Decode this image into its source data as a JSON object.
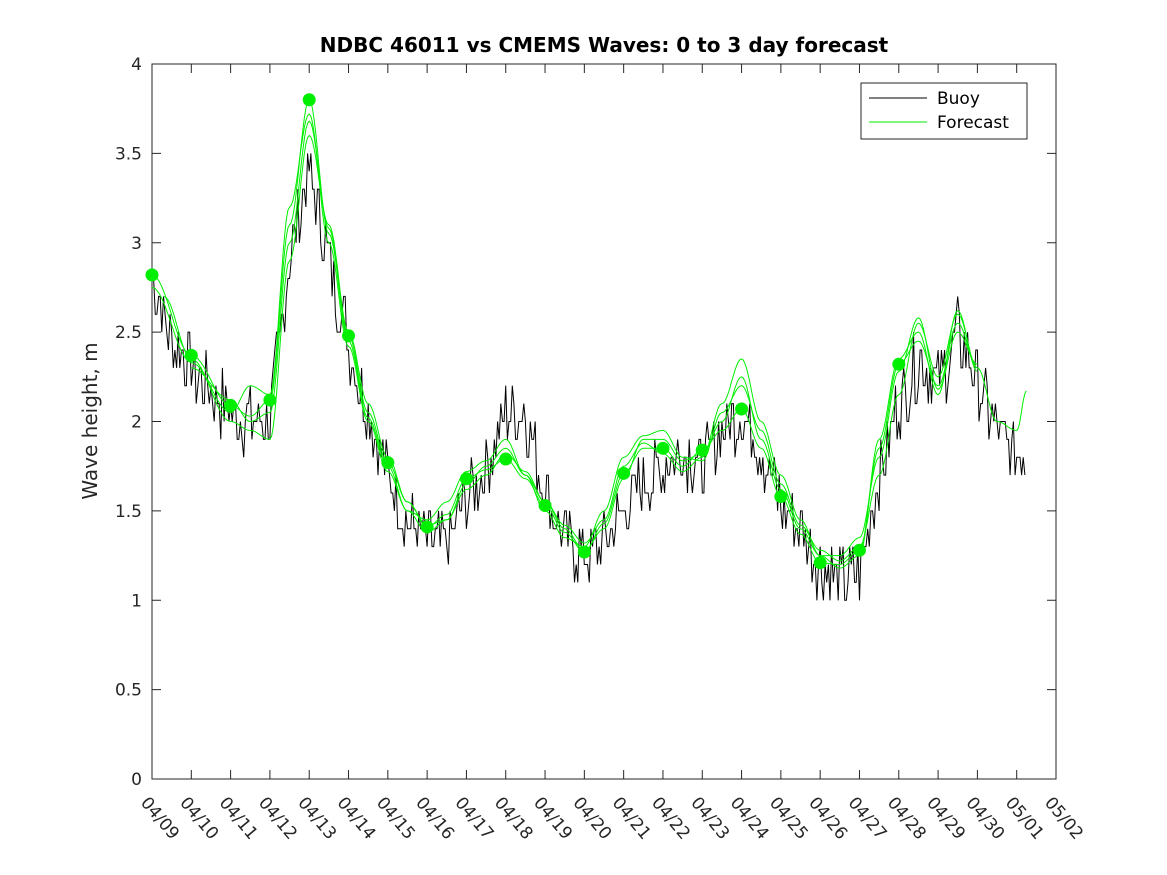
{
  "chart_data": {
    "type": "line",
    "title": "NDBC 46011 vs CMEMS Waves: 0 to 3 day forecast",
    "ylabel": "Wave height, m",
    "xlabel": "",
    "xlim": [
      "04/09",
      "05/02"
    ],
    "ylim": [
      0,
      4
    ],
    "y_ticks": [
      "0",
      "0.5",
      "1",
      "1.5",
      "2",
      "2.5",
      "3",
      "3.5",
      "4"
    ],
    "x_ticks": [
      "04/09",
      "04/10",
      "04/11",
      "04/12",
      "04/13",
      "04/14",
      "04/15",
      "04/16",
      "04/17",
      "04/18",
      "04/19",
      "04/20",
      "04/21",
      "04/22",
      "04/23",
      "04/24",
      "04/25",
      "04/26",
      "04/27",
      "04/28",
      "04/29",
      "04/30",
      "05/01",
      "05/02"
    ],
    "grid": false,
    "legend_position": "top-right",
    "legend": [
      {
        "name": "Buoy",
        "color": "#000000"
      },
      {
        "name": "Forecast",
        "color": "#00ee00"
      }
    ],
    "buoy_color": "#000000",
    "forecast_color": "#00ee00",
    "buoy_hourly_smooth": {
      "start": "04/09",
      "x": [
        "04/09",
        "04/09.5",
        "04/10",
        "04/10.5",
        "04/11",
        "04/11.5",
        "04/12",
        "04/12.5",
        "04/13",
        "04/13.5",
        "04/14",
        "04/14.5",
        "04/15",
        "04/15.5",
        "04/16",
        "04/16.5",
        "04/17",
        "04/17.5",
        "04/18",
        "04/18.5",
        "04/19",
        "04/19.5",
        "04/20",
        "04/20.5",
        "04/21",
        "04/21.5",
        "04/22",
        "04/22.5",
        "04/23",
        "04/23.5",
        "04/24",
        "04/24.5",
        "04/25",
        "04/25.5",
        "04/26",
        "04/26.5",
        "04/27",
        "04/27.5",
        "04/28",
        "04/28.5",
        "04/29",
        "04/29.5",
        "04/30",
        "04/30.5",
        "05/01",
        "05/01.25"
      ],
      "y": [
        2.8,
        2.45,
        2.3,
        2.15,
        2.05,
        2.0,
        2.0,
        2.9,
        3.4,
        2.9,
        2.45,
        2.05,
        1.7,
        1.45,
        1.35,
        1.3,
        1.55,
        1.75,
        2.05,
        2.05,
        1.6,
        1.35,
        1.25,
        1.3,
        1.5,
        1.65,
        1.75,
        1.85,
        1.75,
        1.95,
        2.05,
        1.85,
        1.55,
        1.4,
        1.2,
        1.1,
        1.15,
        1.7,
        2.1,
        2.35,
        2.2,
        2.5,
        2.2,
        1.95,
        1.8,
        1.85
      ]
    },
    "forecast_points": [
      {
        "x": "04/09",
        "y": 2.82
      },
      {
        "x": "04/10",
        "y": 2.37
      },
      {
        "x": "04/11",
        "y": 2.09
      },
      {
        "x": "04/12",
        "y": 2.12
      },
      {
        "x": "04/13",
        "y": 3.8
      },
      {
        "x": "04/14",
        "y": 2.48
      },
      {
        "x": "04/15",
        "y": 1.77
      },
      {
        "x": "04/16",
        "y": 1.41
      },
      {
        "x": "04/17",
        "y": 1.68
      },
      {
        "x": "04/18",
        "y": 1.79
      },
      {
        "x": "04/19",
        "y": 1.53
      },
      {
        "x": "04/20",
        "y": 1.27
      },
      {
        "x": "04/21",
        "y": 1.71
      },
      {
        "x": "04/22",
        "y": 1.85
      },
      {
        "x": "04/23",
        "y": 1.84
      },
      {
        "x": "04/24",
        "y": 2.07
      },
      {
        "x": "04/25",
        "y": 1.58
      },
      {
        "x": "04/26",
        "y": 1.21
      },
      {
        "x": "04/27",
        "y": 1.28
      },
      {
        "x": "04/28",
        "y": 2.32
      }
    ],
    "forecast_series": [
      {
        "x": [
          "04/09",
          "04/10",
          "04/11",
          "04/11.5",
          "04/12",
          "04/12.5",
          "04/13",
          "04/13.5",
          "04/14",
          "04/14.5",
          "04/15",
          "04/15.5",
          "04/16",
          "04/16.5",
          "04/17",
          "04/17.5",
          "04/18",
          "04/18.5",
          "04/19",
          "04/19.5",
          "04/20",
          "04/20.5",
          "04/21",
          "04/21.5",
          "04/22",
          "04/22.5",
          "04/23",
          "04/23.5",
          "04/24",
          "04/24.5",
          "04/25",
          "04/25.5",
          "04/26",
          "04/26.5",
          "04/27",
          "04/27.5",
          "04/28",
          "04/28.5",
          "04/29",
          "04/29.5",
          "04/30",
          "04/30.5",
          "05/01",
          "05/01.25"
        ],
        "y": [
          2.82,
          2.37,
          2.09,
          2.03,
          2.12,
          3.1,
          3.8,
          3.05,
          2.48,
          2.05,
          1.77,
          1.55,
          1.41,
          1.48,
          1.68,
          1.73,
          1.79,
          1.68,
          1.53,
          1.38,
          1.27,
          1.43,
          1.71,
          1.85,
          1.85,
          1.75,
          1.84,
          1.95,
          2.07,
          1.85,
          1.58,
          1.37,
          1.21,
          1.2,
          1.28,
          1.85,
          2.32,
          2.45,
          2.2,
          2.55,
          2.3,
          2.0,
          1.95,
          2.17
        ]
      },
      {
        "x": [
          "04/09",
          "04/10",
          "04/11",
          "04/11.5",
          "04/12",
          "04/12.5",
          "04/13",
          "04/13.5",
          "04/14",
          "04/14.5",
          "04/15",
          "04/15.5",
          "04/16",
          "04/16.5",
          "04/17",
          "04/17.5",
          "04/18",
          "04/18.5",
          "04/19",
          "04/19.5",
          "04/20",
          "04/20.5",
          "04/21",
          "04/21.5",
          "04/22",
          "04/22.5",
          "04/23",
          "04/23.5",
          "04/24",
          "04/24.5",
          "04/25",
          "04/25.5",
          "04/26",
          "04/26.5",
          "04/27",
          "04/27.5",
          "04/28",
          "04/28.5",
          "04/29",
          "04/29.5",
          "04/30"
        ],
        "y": [
          2.75,
          2.33,
          2.05,
          2.2,
          2.15,
          3.2,
          3.72,
          3.0,
          2.42,
          2.0,
          1.72,
          1.5,
          1.45,
          1.55,
          1.72,
          1.78,
          1.9,
          1.7,
          1.5,
          1.35,
          1.3,
          1.5,
          1.8,
          1.92,
          1.95,
          1.8,
          1.78,
          2.05,
          2.2,
          1.95,
          1.65,
          1.42,
          1.28,
          1.22,
          1.3,
          1.7,
          2.15,
          2.55,
          2.25,
          2.6,
          2.3
        ]
      },
      {
        "x": [
          "04/09.3",
          "04/10",
          "04/11",
          "04/11.5",
          "04/12",
          "04/12.5",
          "04/13",
          "04/13.5",
          "04/14",
          "04/14.5",
          "04/15",
          "04/15.5",
          "04/16",
          "04/16.5",
          "04/17",
          "04/17.5",
          "04/18",
          "04/18.5",
          "04/19",
          "04/19.5",
          "04/20",
          "04/20.5",
          "04/21",
          "04/21.5",
          "04/22",
          "04/22.5",
          "04/23",
          "04/23.5",
          "04/24",
          "04/24.5",
          "04/25",
          "04/25.5",
          "04/26",
          "04/26.5",
          "04/27",
          "04/27.5",
          "04/28",
          "04/28.5",
          "04/29",
          "04/29.5",
          "04/30"
        ],
        "y": [
          2.7,
          2.35,
          2.0,
          1.95,
          1.9,
          2.9,
          3.6,
          3.1,
          2.5,
          2.1,
          1.8,
          1.55,
          1.42,
          1.45,
          1.62,
          1.7,
          1.82,
          1.72,
          1.55,
          1.42,
          1.32,
          1.45,
          1.75,
          1.88,
          1.82,
          1.72,
          1.8,
          2.1,
          2.35,
          2.0,
          1.7,
          1.45,
          1.25,
          1.18,
          1.25,
          1.9,
          2.35,
          2.5,
          2.15,
          2.62,
          2.28
        ]
      },
      {
        "x": [
          "04/10",
          "04/11",
          "04/11.5",
          "04/12",
          "04/12.5",
          "04/13",
          "04/13.5",
          "04/14",
          "04/14.5",
          "04/15",
          "04/15.5",
          "04/16",
          "04/16.5",
          "04/17",
          "04/17.5",
          "04/18",
          "04/18.5",
          "04/19",
          "04/19.5",
          "04/20",
          "04/20.5",
          "04/21",
          "04/21.5",
          "04/22",
          "04/22.5",
          "04/23",
          "04/23.5",
          "04/24",
          "04/24.5",
          "04/25",
          "04/25.5",
          "04/26",
          "04/26.5",
          "04/27",
          "04/27.5",
          "04/28",
          "04/28.5",
          "04/29",
          "04/29.5",
          "04/30"
        ],
        "y": [
          2.3,
          2.12,
          2.0,
          2.05,
          3.0,
          3.68,
          3.08,
          2.45,
          2.02,
          1.75,
          1.5,
          1.38,
          1.45,
          1.65,
          1.75,
          1.85,
          1.7,
          1.55,
          1.4,
          1.28,
          1.4,
          1.68,
          1.9,
          1.9,
          1.78,
          1.82,
          2.0,
          2.25,
          1.9,
          1.62,
          1.4,
          1.25,
          1.25,
          1.35,
          1.8,
          2.28,
          2.58,
          2.18,
          2.5,
          2.32
        ]
      }
    ]
  }
}
